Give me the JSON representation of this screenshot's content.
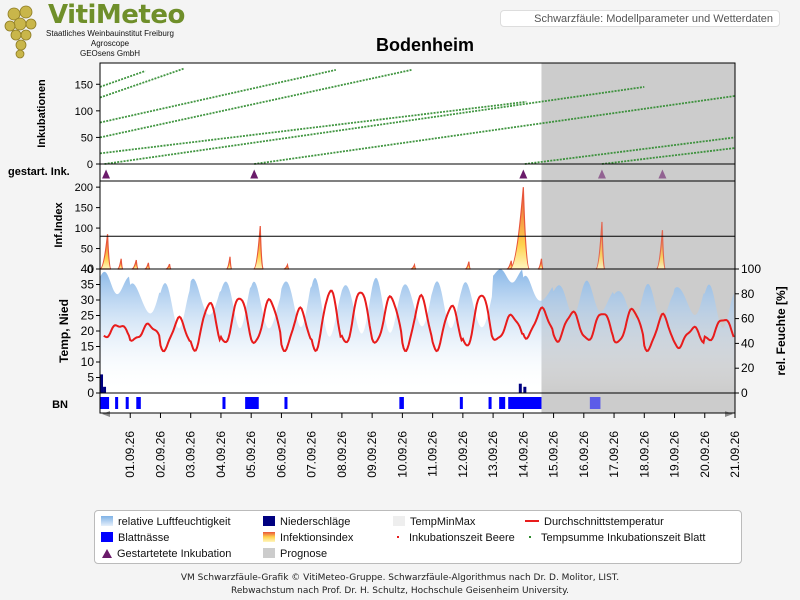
{
  "header": {
    "logo_name": "VitiMeteo",
    "logo_lines": [
      "Staatliches Weinbauinstitut Freiburg",
      "Agroscope",
      "GEOsens GmbH"
    ],
    "subtitle": "Schwarzfäule: Modellparameter und Wetterdaten"
  },
  "colors": {
    "incubation": "#2e8b2e",
    "infection_fill": "#ffd24d",
    "infection_line": "#e8553a",
    "humidity": "#7fb2e6",
    "temperature": "#e81c1c",
    "precipitation": "#000080",
    "leaf_wetness": "#0000ff",
    "marker": "#6a1b6a",
    "forecast": "#cccccc"
  },
  "footer": {
    "line1": "VM Schwarzfäule-Grafik © VitiMeteo-Gruppe. Schwarzfäule-Algorithmus nach Dr. D. Molitor, LIST.",
    "line2": "Rebwachstum nach Prof. Dr. H. Schultz, Hochschule Geisenheim University."
  },
  "chart_data": {
    "type": "line",
    "title": "Bodenheim",
    "forecast_start": 14.6,
    "x_range": [
      0,
      21
    ],
    "x_ticks": [
      "01.09.26",
      "02.09.26",
      "03.09.26",
      "04.09.26",
      "05.09.26",
      "06.09.26",
      "07.09.26",
      "08.09.26",
      "09.09.26",
      "10.09.26",
      "11.09.26",
      "12.09.26",
      "13.09.26",
      "14.09.26",
      "15.09.26",
      "16.09.26",
      "17.09.26",
      "18.09.26",
      "19.09.26",
      "20.09.26",
      "21.09.26"
    ],
    "panels": [
      {
        "name": "incubations",
        "ylabel": "Inkubationen",
        "ylim": [
          0,
          190
        ],
        "yticks": [
          0,
          50,
          100,
          150
        ],
        "series": [
          {
            "x": [
              0.0,
              1.5
            ],
            "y": [
              145,
              175
            ]
          },
          {
            "x": [
              0.0,
              2.8
            ],
            "y": [
              125,
              180
            ]
          },
          {
            "x": [
              0.0,
              7.8
            ],
            "y": [
              78,
              177
            ]
          },
          {
            "x": [
              0.0,
              10.3
            ],
            "y": [
              50,
              177
            ]
          },
          {
            "x": [
              0.0,
              14.1
            ],
            "y": [
              20,
              117
            ]
          },
          {
            "x": [
              0.15,
              18.0
            ],
            "y": [
              0,
              145
            ]
          },
          {
            "x": [
              5.1,
              21.0
            ],
            "y": [
              0,
              128
            ]
          },
          {
            "x": [
              14.05,
              21.0
            ],
            "y": [
              0,
              50
            ]
          },
          {
            "x": [
              16.6,
              21.0
            ],
            "y": [
              0,
              30
            ]
          }
        ]
      },
      {
        "name": "started_incubation",
        "ylabel": "gestart. Ink.",
        "markers": [
          0.2,
          5.1,
          14.0,
          16.6,
          18.6
        ]
      },
      {
        "name": "infection_index",
        "ylabel": "Inf.Index",
        "ylim": [
          0,
          215
        ],
        "yticks": [
          0,
          50,
          100,
          150,
          200
        ],
        "threshold": 80,
        "peaks": [
          {
            "x": 0.25,
            "y": 85,
            "w": 0.25
          },
          {
            "x": 0.7,
            "y": 25,
            "w": 0.12
          },
          {
            "x": 1.2,
            "y": 22,
            "w": 0.15
          },
          {
            "x": 1.6,
            "y": 15,
            "w": 0.12
          },
          {
            "x": 2.3,
            "y": 12,
            "w": 0.12
          },
          {
            "x": 4.3,
            "y": 30,
            "w": 0.12
          },
          {
            "x": 5.3,
            "y": 105,
            "w": 0.22
          },
          {
            "x": 6.2,
            "y": 10,
            "w": 0.12
          },
          {
            "x": 10.4,
            "y": 10,
            "w": 0.12
          },
          {
            "x": 12.2,
            "y": 18,
            "w": 0.12
          },
          {
            "x": 13.6,
            "y": 20,
            "w": 0.15
          },
          {
            "x": 14.0,
            "y": 200,
            "w": 0.45
          },
          {
            "x": 14.6,
            "y": 25,
            "w": 0.12
          },
          {
            "x": 16.6,
            "y": 115,
            "w": 0.2
          },
          {
            "x": 18.6,
            "y": 95,
            "w": 0.2
          }
        ]
      },
      {
        "name": "weather",
        "ylabel_left": "Temp, Nied",
        "ylabel_right": "rel. Feuchte [%]",
        "ylim_left": [
          0,
          40
        ],
        "ylim_right": [
          0,
          100
        ],
        "yticks_left": [
          0,
          5,
          10,
          15,
          20,
          25,
          30,
          35,
          40
        ],
        "yticks_right": [
          0,
          20,
          40,
          60,
          80,
          100
        ],
        "temperature": {
          "daily_min": [
            18,
            17,
            14,
            14,
            16,
            16,
            14,
            14,
            16,
            16,
            14,
            14,
            15,
            17,
            18,
            17,
            17,
            16,
            14,
            15,
            17
          ],
          "daily_max": [
            22,
            22,
            24,
            29,
            31,
            30,
            27,
            33,
            33,
            31,
            31,
            28,
            32,
            25,
            27,
            26,
            26,
            27,
            25,
            21,
            24
          ],
          "peak_hour_fraction": 0.62
        },
        "humidity": {
          "daily_min": [
            82,
            62,
            55,
            60,
            55,
            50,
            55,
            45,
            48,
            50,
            52,
            55,
            50,
            92,
            72,
            65,
            65,
            60,
            60,
            62,
            55
          ],
          "daily_max": [
            95,
            90,
            87,
            92,
            90,
            88,
            92,
            90,
            90,
            90,
            90,
            88,
            90,
            98,
            93,
            88,
            88,
            85,
            85,
            88,
            85
          ]
        },
        "precipitation": [
          {
            "x": 0.05,
            "y": 6
          },
          {
            "x": 0.15,
            "y": 2
          },
          {
            "x": 13.9,
            "y": 3
          },
          {
            "x": 14.05,
            "y": 2
          }
        ]
      },
      {
        "name": "leaf_wetness",
        "ylabel": "BN",
        "intervals": [
          [
            0.0,
            0.3
          ],
          [
            0.5,
            0.6
          ],
          [
            0.85,
            0.95
          ],
          [
            1.2,
            1.35
          ],
          [
            4.05,
            4.15
          ],
          [
            4.8,
            5.25
          ],
          [
            6.1,
            6.2
          ],
          [
            9.9,
            10.05
          ],
          [
            11.9,
            12.0
          ],
          [
            12.85,
            12.95
          ],
          [
            13.2,
            13.4
          ],
          [
            13.5,
            14.6
          ],
          [
            16.2,
            16.55
          ]
        ]
      }
    ],
    "legend": [
      {
        "label": "relative Luftfeuchtigkeit",
        "symbol": "humidity"
      },
      {
        "label": "Niederschläge",
        "symbol": "precipitation"
      },
      {
        "label": "TempMinMax",
        "symbol": "tempminmax"
      },
      {
        "label": "Durchschnittstemperatur",
        "symbol": "temperature"
      },
      {
        "label": "Blattnässe",
        "symbol": "leaf_wetness"
      },
      {
        "label": "Infektionsindex",
        "symbol": "infection"
      },
      {
        "label": "Inkubationszeit Beere",
        "symbol": "dot-red"
      },
      {
        "label": "Tempsumme Inkubationszeit Blatt",
        "symbol": "dot-green"
      },
      {
        "label": "Gestartetete Inkubation",
        "symbol": "triangle"
      },
      {
        "label": "Prognose",
        "symbol": "forecast"
      }
    ]
  }
}
